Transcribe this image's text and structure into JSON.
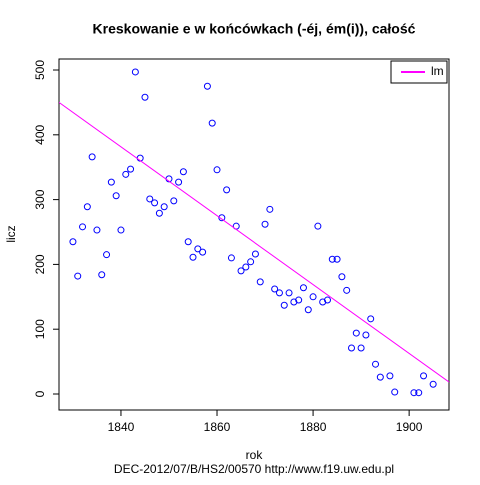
{
  "chart_data": {
    "type": "scatter",
    "title": "Kreskowanie e w końcówkach (-éj, ém(i)), całość",
    "x_label": "rok",
    "y_label": "licz",
    "footer": "DEC-2012/07/B/HS2/00570   http://www.f19.uw.edu.pl",
    "xlim": [
      1827.1,
      1908.3
    ],
    "ylim": [
      -24.7,
      517
    ],
    "xticks": [
      1840,
      1860,
      1880,
      1900
    ],
    "yticks": [
      0,
      100,
      200,
      300,
      400,
      500
    ],
    "grid": false,
    "legend": "top-right",
    "series": [
      {
        "name": null,
        "color": "#0000ff",
        "x": [
          1830,
          1831,
          1832,
          1833,
          1834,
          1835,
          1836,
          1837,
          1838,
          1839,
          1840,
          1841,
          1842,
          1843,
          1844,
          1845,
          1846,
          1847,
          1848,
          1849,
          1850,
          1851,
          1852,
          1853,
          1854,
          1855,
          1856,
          1857,
          1858,
          1859,
          1860,
          1861,
          1862,
          1863,
          1864,
          1865,
          1866,
          1867,
          1868,
          1869,
          1870,
          1871,
          1872,
          1873,
          1874,
          1875,
          1876,
          1877,
          1878,
          1879,
          1880,
          1881,
          1882,
          1883,
          1884,
          1885,
          1886,
          1887,
          1888,
          1889,
          1890,
          1891,
          1892,
          1893,
          1894,
          1896,
          1897,
          1901,
          1902,
          1903,
          1905
        ],
        "values": [
          235,
          182,
          258,
          289,
          366,
          253,
          184,
          215,
          327,
          306,
          253,
          339,
          347,
          497,
          364,
          458,
          301,
          295,
          279,
          289,
          332,
          298,
          327,
          343,
          235,
          211,
          224,
          219,
          475,
          418,
          346,
          272,
          315,
          210,
          259,
          190,
          196,
          204,
          216,
          173,
          262,
          285,
          162,
          156,
          137,
          156,
          142,
          145,
          164,
          130,
          150,
          259,
          142,
          145,
          208,
          208,
          181,
          160,
          71,
          94,
          71,
          91,
          116,
          46,
          26,
          28,
          3,
          2,
          2,
          28,
          15
        ]
      },
      {
        "name": "lm",
        "color": "#ff00ff",
        "line": true,
        "x": [
          1827.1,
          1908.3
        ],
        "values": [
          450,
          18.5
        ]
      }
    ]
  }
}
